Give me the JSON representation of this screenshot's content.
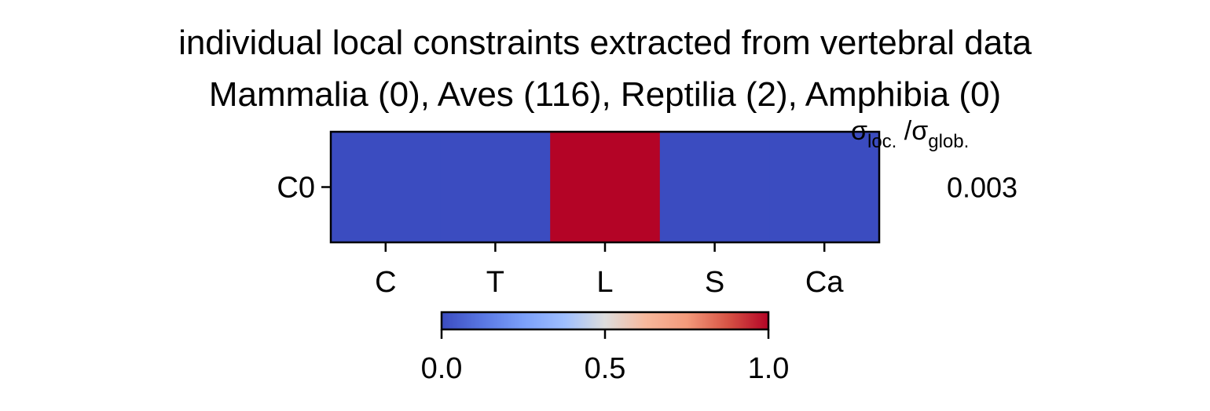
{
  "chart_data": {
    "type": "heatmap",
    "title": "individual local constraints extracted from vertebral data",
    "subtitle": "Mammalia (0), Aves (116), Reptilia (2), Amphibia (0)",
    "x_categories": [
      "C",
      "T",
      "L",
      "S",
      "Ca"
    ],
    "y_categories": [
      "C0"
    ],
    "values": [
      [
        0.0,
        0.0,
        1.0,
        0.0,
        0.0
      ]
    ],
    "colormap": "coolwarm",
    "colors": {
      "low": "#3b4cc0",
      "mid": "#dddddd",
      "high": "#b40426"
    },
    "colorbar": {
      "min": 0.0,
      "max": 1.0,
      "ticks": [
        "0.0",
        "0.5",
        "1.0"
      ],
      "orientation": "horizontal",
      "placement": "bottom"
    },
    "side_annotation": {
      "header_main": "σ",
      "header_sub1": "loc.",
      "header_mid": " /σ",
      "header_sub2": "glob.",
      "values": [
        "0.003"
      ]
    }
  }
}
